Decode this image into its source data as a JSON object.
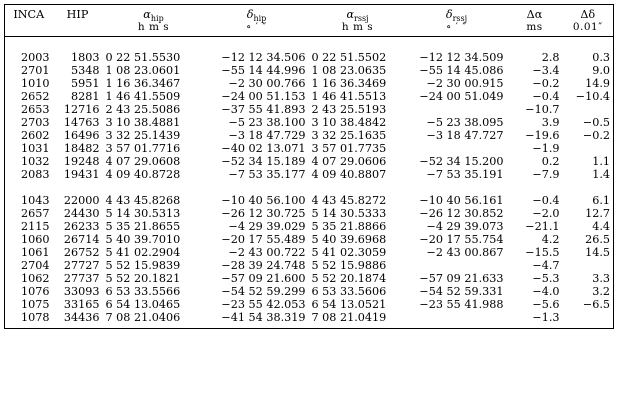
{
  "headers": {
    "inca": "INCA",
    "hip": "HIP",
    "alpha_hip_symbol": "α",
    "alpha_hip_sub": "hip",
    "delta_hip_symbol": "δ",
    "delta_hip_sub": "hip",
    "alpha_rssj_symbol": "α",
    "alpha_rssj_sub": "rssj",
    "delta_rssj_symbol": "δ",
    "delta_rssj_sub": "rssj",
    "dalpha": "Δα",
    "ddelta": "Δδ"
  },
  "units": {
    "inca": "",
    "hip": "",
    "alpha_hip": "h  m  s",
    "delta_hip": "∘  ′  ″",
    "alpha_rssj": "h  m  s",
    "delta_rssj": "∘  ′  ″",
    "dalpha": "ms",
    "ddelta": "0.01″"
  },
  "group1": [
    {
      "inca": "2003",
      "hip": "1803",
      "ahip": "0 22 51.5530",
      "dhip": "−12 12 34.506",
      "arssj": "0 22 51.5502",
      "drssj": "−12 12 34.509",
      "da": "2.8",
      "dd": "0.3"
    },
    {
      "inca": "2701",
      "hip": "5348",
      "ahip": "1 08 23.0601",
      "dhip": "−55 14 44.996",
      "arssj": "1 08 23.0635",
      "drssj": "−55 14 45.086",
      "da": "−3.4",
      "dd": "9.0"
    },
    {
      "inca": "1010",
      "hip": "5951",
      "ahip": "1 16 36.3467",
      "dhip": "−2 30 00.766",
      "arssj": "1 16 36.3469",
      "drssj": "−2 30 00.915",
      "da": "−0.2",
      "dd": "14.9"
    },
    {
      "inca": "2652",
      "hip": "8281",
      "ahip": "1 46 41.5509",
      "dhip": "−24 00 51.153",
      "arssj": "1 46 41.5513",
      "drssj": "−24 00 51.049",
      "da": "−0.4",
      "dd": "−10.4"
    },
    {
      "inca": "2653",
      "hip": "12716",
      "ahip": "2 43 25.5086",
      "dhip": "−37 55 41.893",
      "arssj": "2 43 25.5193",
      "drssj": "",
      "da": "−10.7",
      "dd": ""
    },
    {
      "inca": "2703",
      "hip": "14763",
      "ahip": "3 10 38.4881",
      "dhip": "−5 23 38.100",
      "arssj": "3 10 38.4842",
      "drssj": "−5 23 38.095",
      "da": "3.9",
      "dd": "−0.5"
    },
    {
      "inca": "2602",
      "hip": "16496",
      "ahip": "3 32 25.1439",
      "dhip": "−3 18 47.729",
      "arssj": "3 32 25.1635",
      "drssj": "−3 18 47.727",
      "da": "−19.6",
      "dd": "−0.2"
    },
    {
      "inca": "1031",
      "hip": "18482",
      "ahip": "3 57 01.7716",
      "dhip": "−40 02 13.071",
      "arssj": "3 57 01.7735",
      "drssj": "",
      "da": "−1.9",
      "dd": ""
    },
    {
      "inca": "1032",
      "hip": "19248",
      "ahip": "4 07 29.0608",
      "dhip": "−52 34 15.189",
      "arssj": "4 07 29.0606",
      "drssj": "−52 34 15.200",
      "da": "0.2",
      "dd": "1.1"
    },
    {
      "inca": "2083",
      "hip": "19431",
      "ahip": "4 09 40.8728",
      "dhip": "−7 53 35.177",
      "arssj": "4 09 40.8807",
      "drssj": "−7 53 35.191",
      "da": "−7.9",
      "dd": "1.4"
    }
  ],
  "group2": [
    {
      "inca": "1043",
      "hip": "22000",
      "ahip": "4 43 45.8268",
      "dhip": "−10 40 56.100",
      "arssj": "4 43 45.8272",
      "drssj": "−10 40 56.161",
      "da": "−0.4",
      "dd": "6.1"
    },
    {
      "inca": "2657",
      "hip": "24430",
      "ahip": "5 14 30.5313",
      "dhip": "−26 12 30.725",
      "arssj": "5 14 30.5333",
      "drssj": "−26 12 30.852",
      "da": "−2.0",
      "dd": "12.7"
    },
    {
      "inca": "2115",
      "hip": "26233",
      "ahip": "5 35 21.8655",
      "dhip": "−4 29 39.029",
      "arssj": "5 35 21.8866",
      "drssj": "−4 29 39.073",
      "da": "−21.1",
      "dd": "4.4"
    },
    {
      "inca": "1060",
      "hip": "26714",
      "ahip": "5 40 39.7010",
      "dhip": "−20 17 55.489",
      "arssj": "5 40 39.6968",
      "drssj": "−20 17 55.754",
      "da": "4.2",
      "dd": "26.5"
    },
    {
      "inca": "1061",
      "hip": "26752",
      "ahip": "5 41 02.2904",
      "dhip": "−2 43 00.722",
      "arssj": "5 41 02.3059",
      "drssj": "−2 43 00.867",
      "da": "−15.5",
      "dd": "14.5"
    },
    {
      "inca": "2704",
      "hip": "27727",
      "ahip": "5 52 15.9839",
      "dhip": "−28 39 24.748",
      "arssj": "5 52 15.9886",
      "drssj": "",
      "da": "−4.7",
      "dd": ""
    },
    {
      "inca": "1062",
      "hip": "27737",
      "ahip": "5 52 20.1821",
      "dhip": "−57 09 21.600",
      "arssj": "5 52 20.1874",
      "drssj": "−57 09 21.633",
      "da": "−5.3",
      "dd": "3.3"
    },
    {
      "inca": "1076",
      "hip": "33093",
      "ahip": "6 53 33.5566",
      "dhip": "−54 52 59.299",
      "arssj": "6 53 33.5606",
      "drssj": "−54 52 59.331",
      "da": "−4.0",
      "dd": "3.2"
    },
    {
      "inca": "1075",
      "hip": "33165",
      "ahip": "6 54 13.0465",
      "dhip": "−23 55 42.053",
      "arssj": "6 54 13.0521",
      "drssj": "−23 55 41.988",
      "da": "−5.6",
      "dd": "−6.5"
    },
    {
      "inca": "1078",
      "hip": "34436",
      "ahip": "7 08 21.0406",
      "dhip": "−41 54 38.319",
      "arssj": "7 08 21.0419",
      "drssj": "",
      "da": "−1.3",
      "dd": ""
    }
  ]
}
